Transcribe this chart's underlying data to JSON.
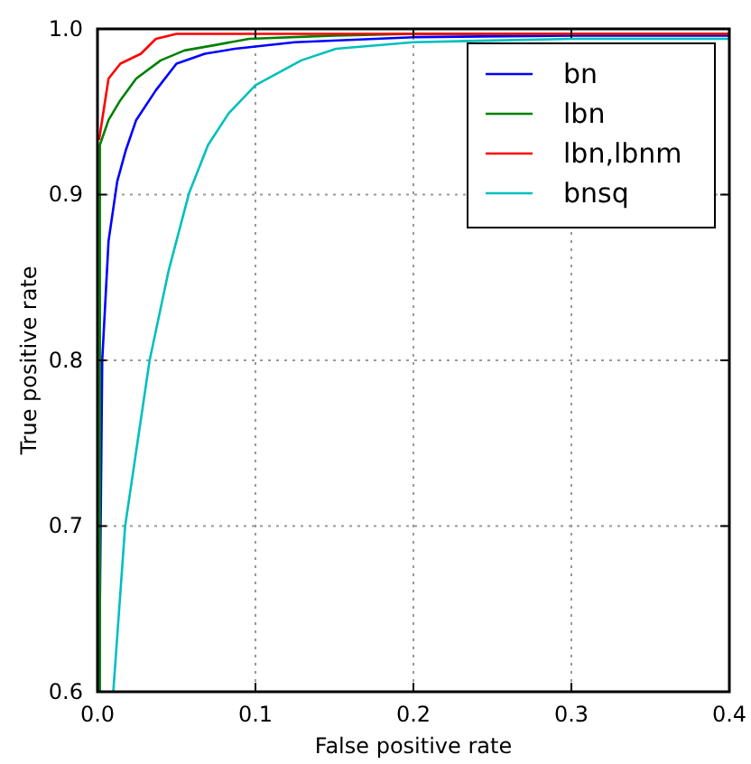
{
  "chart_data": {
    "type": "line",
    "xlabel": "False positive rate",
    "ylabel": "True positive rate",
    "xlim": [
      0,
      0.4
    ],
    "ylim": [
      0.6,
      1.0
    ],
    "xticks": [
      {
        "value": 0,
        "label": "0.0"
      },
      0.1,
      0.2,
      0.3,
      0.4
    ],
    "yticks": [
      0.6,
      0.7,
      0.8,
      0.9,
      {
        "value": 1,
        "label": "1.0"
      }
    ],
    "grid": true,
    "legend": "top right",
    "line_style": "solid",
    "marker": "none",
    "series": [
      {
        "name": "bn",
        "color": "#0000ff",
        "x": [
          0.001,
          0.003,
          0.007,
          0.0125,
          0.018,
          0.0245,
          0.037,
          0.05,
          0.068,
          0.087,
          0.125,
          0.2,
          0.3,
          0.4
        ],
        "values": [
          0.6,
          0.8,
          0.872,
          0.908,
          0.927,
          0.945,
          0.963,
          0.979,
          0.985,
          0.988,
          0.992,
          0.995,
          0.996,
          0.996
        ]
      },
      {
        "name": "lbn",
        "color": "#008000",
        "x": [
          0.0015,
          0.0015,
          0.007,
          0.0145,
          0.0245,
          0.04,
          0.055,
          0.073,
          0.096,
          0.15,
          0.2,
          0.3,
          0.4
        ],
        "values": [
          0.6,
          0.93,
          0.945,
          0.957,
          0.97,
          0.981,
          0.987,
          0.99,
          0.994,
          0.996,
          0.997,
          0.997,
          0.997
        ]
      },
      {
        "name": "lbn,lbnm",
        "color": "#ff0000",
        "x": [
          0.001,
          0.007,
          0.0145,
          0.0275,
          0.037,
          0.05,
          0.1,
          0.2,
          0.3,
          0.4
        ],
        "values": [
          0.933,
          0.97,
          0.979,
          0.985,
          0.994,
          0.997,
          0.997,
          0.997,
          0.997,
          0.997
        ]
      },
      {
        "name": "bnsq",
        "color": "#00bfbf",
        "x": [
          0.01,
          0.0175,
          0.033,
          0.045,
          0.058,
          0.07,
          0.083,
          0.1,
          0.129,
          0.151,
          0.2,
          0.25,
          0.3,
          0.4
        ],
        "values": [
          0.6,
          0.7,
          0.8,
          0.854,
          0.901,
          0.93,
          0.949,
          0.966,
          0.981,
          0.988,
          0.992,
          0.993,
          0.994,
          0.994
        ]
      }
    ]
  }
}
